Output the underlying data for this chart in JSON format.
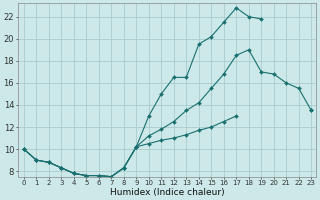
{
  "xlabel": "Humidex (Indice chaleur)",
  "bg_color": "#cce8e8",
  "grid_color": "#aacccc",
  "line_color": "#1a7070",
  "xlim": [
    -0.5,
    23.4
  ],
  "ylim": [
    7.5,
    23.2
  ],
  "xticks": [
    0,
    1,
    2,
    3,
    4,
    5,
    6,
    7,
    8,
    9,
    10,
    11,
    12,
    13,
    14,
    15,
    16,
    17,
    18,
    19,
    20,
    21,
    22,
    23
  ],
  "yticks": [
    8,
    10,
    12,
    14,
    16,
    18,
    20,
    22
  ],
  "line1_x": [
    0,
    1,
    2,
    3,
    4,
    5,
    6,
    7,
    8,
    9,
    10,
    11,
    12,
    13,
    14,
    15,
    16,
    17,
    18,
    19,
    20,
    21,
    22,
    23
  ],
  "line1_y": [
    10.0,
    9.0,
    8.8,
    8.3,
    7.8,
    7.6,
    7.6,
    7.5,
    8.3,
    10.2,
    13.0,
    15.0,
    16.5,
    16.5,
    19.5,
    20.2,
    21.5,
    22.8,
    22.0,
    21.8,
    null,
    null,
    null,
    null
  ],
  "line2_x": [
    0,
    1,
    2,
    3,
    4,
    5,
    6,
    7,
    8,
    9,
    10,
    11,
    12,
    13,
    14,
    15,
    16,
    17,
    18,
    19,
    20,
    21,
    22,
    23
  ],
  "line2_y": [
    10.0,
    9.0,
    8.8,
    8.3,
    7.8,
    7.6,
    7.6,
    7.5,
    8.3,
    10.2,
    11.2,
    11.8,
    12.5,
    13.5,
    14.2,
    15.5,
    16.8,
    18.5,
    19.0,
    17.0,
    16.8,
    16.0,
    15.5,
    13.5
  ],
  "line3_x": [
    0,
    1,
    2,
    3,
    4,
    5,
    6,
    7,
    8,
    9,
    10,
    11,
    12,
    13,
    14,
    15,
    16,
    17,
    18,
    19,
    20,
    21,
    22,
    23
  ],
  "line3_y": [
    10.0,
    9.0,
    8.8,
    8.3,
    7.8,
    7.6,
    7.6,
    7.5,
    8.3,
    10.2,
    10.5,
    10.8,
    11.0,
    11.3,
    11.7,
    12.0,
    12.5,
    13.0,
    null,
    null,
    null,
    null,
    null,
    13.5
  ]
}
